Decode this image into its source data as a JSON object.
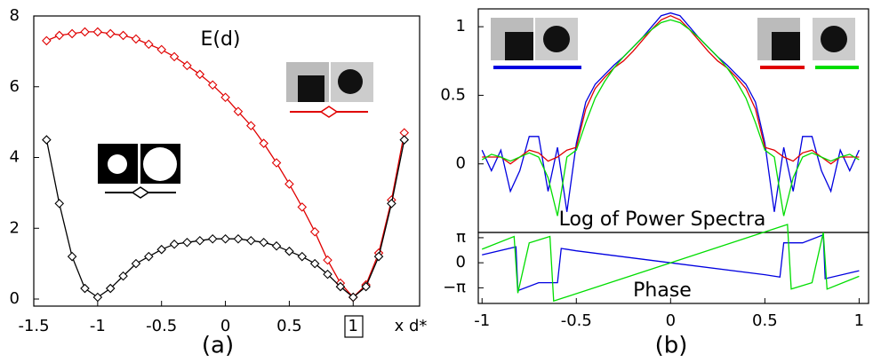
{
  "chart_data": [
    {
      "type": "line",
      "title": "E(d)",
      "x_label": "x d*",
      "caption": "(a)",
      "marker": "diamond",
      "x": [
        -1.4,
        -1.3,
        -1.2,
        -1.1,
        -1.0,
        -0.9,
        -0.8,
        -0.7,
        -0.6,
        -0.5,
        -0.4,
        -0.3,
        -0.2,
        -0.1,
        0,
        0.1,
        0.2,
        0.3,
        0.4,
        0.5,
        0.6,
        0.7,
        0.8,
        0.9,
        1.0,
        1.1,
        1.2,
        1.3,
        1.4
      ],
      "series": [
        {
          "color": "#e00000",
          "values": [
            7.3,
            7.45,
            7.5,
            7.55,
            7.55,
            7.5,
            7.45,
            7.35,
            7.2,
            7.05,
            6.85,
            6.6,
            6.35,
            6.05,
            5.7,
            5.3,
            4.9,
            4.4,
            3.85,
            3.25,
            2.6,
            1.9,
            1.1,
            0.45,
            0.05,
            0.4,
            1.3,
            2.8,
            4.7
          ]
        },
        {
          "color": "#000000",
          "values": [
            4.5,
            2.7,
            1.2,
            0.3,
            0.05,
            0.3,
            0.65,
            1.0,
            1.2,
            1.4,
            1.55,
            1.6,
            1.65,
            1.7,
            1.7,
            1.7,
            1.65,
            1.6,
            1.5,
            1.35,
            1.2,
            1.0,
            0.7,
            0.35,
            0.05,
            0.35,
            1.2,
            2.7,
            4.5
          ]
        }
      ],
      "xlim": [
        -1.5,
        1.52
      ],
      "ylim": [
        -0.2,
        8
      ],
      "xticks": [
        -1.5,
        -1,
        -0.5,
        0,
        0.5,
        1
      ],
      "yticks": [
        0,
        2,
        4,
        6,
        8
      ]
    },
    {
      "type": "line",
      "title": "Log of Power Spectra",
      "caption": "(b)",
      "x": [
        -1,
        -0.95,
        -0.9,
        -0.85,
        -0.8,
        -0.75,
        -0.7,
        -0.65,
        -0.6,
        -0.55,
        -0.5,
        -0.45,
        -0.4,
        -0.35,
        -0.3,
        -0.25,
        -0.2,
        -0.15,
        -0.1,
        -0.05,
        0,
        0.05,
        0.1,
        0.15,
        0.2,
        0.25,
        0.3,
        0.35,
        0.4,
        0.45,
        0.5,
        0.55,
        0.6,
        0.65,
        0.7,
        0.75,
        0.8,
        0.85,
        0.9,
        0.95,
        1
      ],
      "series": [
        {
          "color": "#0000e0",
          "values": [
            0.1,
            -0.05,
            0.1,
            -0.2,
            -0.05,
            0.2,
            0.2,
            -0.2,
            0.12,
            -0.35,
            0.15,
            0.45,
            0.58,
            0.65,
            0.72,
            0.78,
            0.85,
            0.92,
            1.0,
            1.08,
            1.1,
            1.08,
            1.0,
            0.92,
            0.85,
            0.78,
            0.72,
            0.65,
            0.58,
            0.45,
            0.15,
            -0.35,
            0.12,
            -0.2,
            0.2,
            0.2,
            -0.05,
            -0.2,
            0.1,
            -0.05,
            0.1
          ]
        },
        {
          "color": "#e00000",
          "values": [
            0.05,
            0.05,
            0.05,
            0,
            0.05,
            0.1,
            0.08,
            0.02,
            0.05,
            0.1,
            0.12,
            0.4,
            0.55,
            0.63,
            0.7,
            0.75,
            0.82,
            0.9,
            0.98,
            1.05,
            1.08,
            1.05,
            0.98,
            0.9,
            0.82,
            0.75,
            0.7,
            0.63,
            0.55,
            0.4,
            0.12,
            0.1,
            0.05,
            0.02,
            0.08,
            0.1,
            0.05,
            0,
            0.05,
            0.05,
            0.05
          ]
        },
        {
          "color": "#00dd00",
          "values": [
            0.03,
            0.07,
            0.05,
            0.02,
            0.05,
            0.08,
            0.05,
            -0.1,
            -0.38,
            0.05,
            0.1,
            0.3,
            0.48,
            0.6,
            0.7,
            0.78,
            0.85,
            0.92,
            0.98,
            1.03,
            1.05,
            1.03,
            0.98,
            0.92,
            0.85,
            0.78,
            0.7,
            0.6,
            0.48,
            0.3,
            0.1,
            0.05,
            -0.38,
            -0.1,
            0.05,
            0.08,
            0.05,
            0.02,
            0.05,
            0.07,
            0.03
          ]
        }
      ],
      "xlim": [
        -1.02,
        1.05
      ],
      "ylim": [
        -0.5,
        1.13
      ],
      "yticks": [
        0,
        0.5,
        1
      ]
    },
    {
      "type": "line",
      "title": "Phase",
      "series": [
        {
          "color": "#0000e0",
          "x": [
            -1,
            -0.82,
            -0.81,
            -0.7,
            -0.6,
            -0.58,
            -0.5,
            0,
            0.5,
            0.58,
            0.6,
            0.7,
            0.81,
            0.82,
            1
          ],
          "values": [
            1.0,
            2.0,
            -3.5,
            -2.5,
            -2.5,
            1.8,
            1.5,
            0,
            -1.5,
            -1.8,
            2.5,
            2.5,
            3.5,
            -2.0,
            -1.0
          ]
        },
        {
          "color": "#00dd00",
          "x": [
            -1,
            -0.83,
            -0.81,
            -0.75,
            -0.64,
            -0.62,
            0,
            0.62,
            0.64,
            0.75,
            0.81,
            0.83,
            1
          ],
          "values": [
            1.7,
            3.3,
            -3.8,
            2.5,
            3.3,
            -4.8,
            0,
            4.8,
            -3.3,
            -2.5,
            3.8,
            -3.3,
            -1.7
          ]
        }
      ],
      "xlim": [
        -1.02,
        1.05
      ],
      "ylim": [
        -5.1,
        3.8
      ],
      "xticks": [
        -1,
        -0.5,
        0,
        0.5,
        1
      ],
      "yticks": [
        {
          "value": 3.1416,
          "label": "π"
        },
        0,
        {
          "value": -3.1416,
          "label": "−π"
        }
      ]
    }
  ]
}
